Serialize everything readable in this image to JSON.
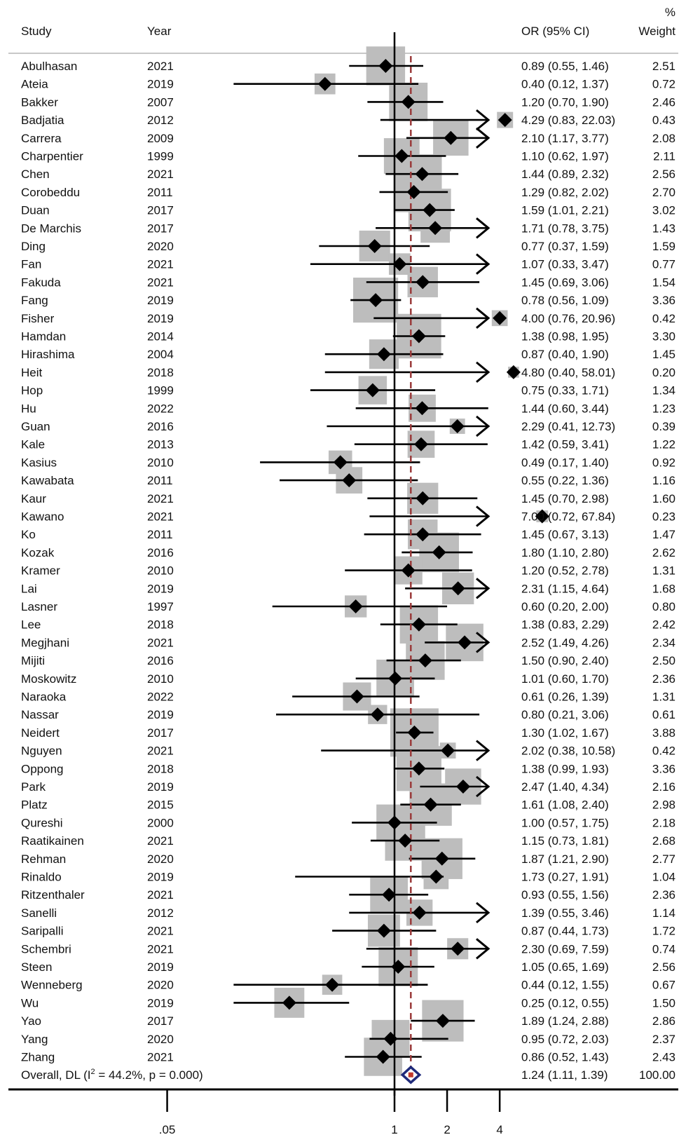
{
  "chart_data": {
    "type": "forest",
    "columns": {
      "study": "Study",
      "year": "Year",
      "effect": "OR (95% CI)",
      "weight_top": "%",
      "weight_bottom": "Weight"
    },
    "x_scale": "log",
    "x_ticks": [
      {
        "value": 0.05,
        "label": ".05"
      },
      {
        "value": 1,
        "label": "1"
      },
      {
        "value": 2,
        "label": "2"
      },
      {
        "value": 4,
        "label": "4"
      }
    ],
    "rows": [
      {
        "study": "Abulhasan",
        "year": "2021",
        "or": 0.89,
        "lo": 0.55,
        "hi": 1.46,
        "ci_text": "0.89 (0.55, 1.46)",
        "weight": 2.51,
        "weight_text": "2.51"
      },
      {
        "study": "Ateia",
        "year": "2019",
        "or": 0.4,
        "lo": 0.12,
        "hi": 1.37,
        "ci_text": "0.40 (0.12, 1.37)",
        "weight": 0.72,
        "weight_text": "0.72"
      },
      {
        "study": "Bakker",
        "year": "2007",
        "or": 1.2,
        "lo": 0.7,
        "hi": 1.9,
        "ci_text": "1.20 (0.70, 1.90)",
        "weight": 2.46,
        "weight_text": "2.46"
      },
      {
        "study": "Badjatia",
        "year": "2012",
        "or": 4.29,
        "lo": 0.83,
        "hi": 22.03,
        "ci_text": "4.29 (0.83, 22.03)",
        "weight": 0.43,
        "weight_text": "0.43"
      },
      {
        "study": "Carrera",
        "year": "2009",
        "or": 2.1,
        "lo": 1.17,
        "hi": 3.77,
        "ci_text": "2.10 (1.17, 3.77)",
        "weight": 2.08,
        "weight_text": "2.08"
      },
      {
        "study": "Charpentier",
        "year": "1999",
        "or": 1.1,
        "lo": 0.62,
        "hi": 1.97,
        "ci_text": "1.10 (0.62, 1.97)",
        "weight": 2.11,
        "weight_text": "2.11"
      },
      {
        "study": "Chen",
        "year": "2021",
        "or": 1.44,
        "lo": 0.89,
        "hi": 2.32,
        "ci_text": "1.44 (0.89, 2.32)",
        "weight": 2.56,
        "weight_text": "2.56"
      },
      {
        "study": "Corobeddu",
        "year": "2011",
        "or": 1.29,
        "lo": 0.82,
        "hi": 2.02,
        "ci_text": "1.29 (0.82, 2.02)",
        "weight": 2.7,
        "weight_text": "2.70"
      },
      {
        "study": "Duan",
        "year": "2017",
        "or": 1.59,
        "lo": 1.01,
        "hi": 2.21,
        "ci_text": "1.59 (1.01, 2.21)",
        "weight": 3.02,
        "weight_text": "3.02"
      },
      {
        "study": "De Marchis",
        "year": "2017",
        "or": 1.71,
        "lo": 0.78,
        "hi": 3.75,
        "ci_text": "1.71 (0.78, 3.75)",
        "weight": 1.43,
        "weight_text": "1.43"
      },
      {
        "study": "Ding",
        "year": "2020",
        "or": 0.77,
        "lo": 0.37,
        "hi": 1.59,
        "ci_text": "0.77 (0.37, 1.59)",
        "weight": 1.59,
        "weight_text": "1.59"
      },
      {
        "study": "Fan",
        "year": "2021",
        "or": 1.07,
        "lo": 0.33,
        "hi": 3.47,
        "ci_text": "1.07 (0.33, 3.47)",
        "weight": 0.77,
        "weight_text": "0.77"
      },
      {
        "study": "Fakuda",
        "year": "2021",
        "or": 1.45,
        "lo": 0.69,
        "hi": 3.06,
        "ci_text": "1.45 (0.69, 3.06)",
        "weight": 1.54,
        "weight_text": "1.54"
      },
      {
        "study": "Fang",
        "year": "2019",
        "or": 0.78,
        "lo": 0.56,
        "hi": 1.09,
        "ci_text": "0.78 (0.56, 1.09)",
        "weight": 3.36,
        "weight_text": "3.36"
      },
      {
        "study": "Fisher",
        "year": "2019",
        "or": 4.0,
        "lo": 0.76,
        "hi": 20.96,
        "ci_text": "4.00 (0.76, 20.96)",
        "weight": 0.42,
        "weight_text": "0.42"
      },
      {
        "study": "Hamdan",
        "year": "2014",
        "or": 1.38,
        "lo": 0.98,
        "hi": 1.95,
        "ci_text": "1.38 (0.98, 1.95)",
        "weight": 3.3,
        "weight_text": "3.30"
      },
      {
        "study": "Hirashima",
        "year": "2004",
        "or": 0.87,
        "lo": 0.4,
        "hi": 1.9,
        "ci_text": "0.87 (0.40, 1.90)",
        "weight": 1.45,
        "weight_text": "1.45"
      },
      {
        "study": "Heit",
        "year": "2018",
        "or": 4.8,
        "lo": 0.4,
        "hi": 58.01,
        "ci_text": "4.80 (0.40, 58.01)",
        "weight": 0.2,
        "weight_text": "0.20"
      },
      {
        "study": "Hop",
        "year": "1999",
        "or": 0.75,
        "lo": 0.33,
        "hi": 1.71,
        "ci_text": "0.75 (0.33, 1.71)",
        "weight": 1.34,
        "weight_text": "1.34"
      },
      {
        "study": "Hu",
        "year": "2022",
        "or": 1.44,
        "lo": 0.6,
        "hi": 3.44,
        "ci_text": "1.44 (0.60, 3.44)",
        "weight": 1.23,
        "weight_text": "1.23"
      },
      {
        "study": "Guan",
        "year": "2016",
        "or": 2.29,
        "lo": 0.41,
        "hi": 12.73,
        "ci_text": "2.29 (0.41, 12.73)",
        "weight": 0.39,
        "weight_text": "0.39"
      },
      {
        "study": "Kale",
        "year": "2013",
        "or": 1.42,
        "lo": 0.59,
        "hi": 3.41,
        "ci_text": "1.42 (0.59, 3.41)",
        "weight": 1.22,
        "weight_text": "1.22"
      },
      {
        "study": "Kasius",
        "year": "2010",
        "or": 0.49,
        "lo": 0.17,
        "hi": 1.4,
        "ci_text": "0.49 (0.17, 1.40)",
        "weight": 0.92,
        "weight_text": "0.92"
      },
      {
        "study": "Kawabata",
        "year": "2011",
        "or": 0.55,
        "lo": 0.22,
        "hi": 1.36,
        "ci_text": "0.55 (0.22, 1.36)",
        "weight": 1.16,
        "weight_text": "1.16"
      },
      {
        "study": "Kaur",
        "year": "2021",
        "or": 1.45,
        "lo": 0.7,
        "hi": 2.98,
        "ci_text": "1.45 (0.70, 2.98)",
        "weight": 1.6,
        "weight_text": "1.60"
      },
      {
        "study": "Kawano",
        "year": "2021",
        "or": 7.0,
        "lo": 0.72,
        "hi": 67.84,
        "ci_text": "7.00 (0.72, 67.84)",
        "weight": 0.23,
        "weight_text": "0.23"
      },
      {
        "study": "Ko",
        "year": "2011",
        "or": 1.45,
        "lo": 0.67,
        "hi": 3.13,
        "ci_text": "1.45 (0.67, 3.13)",
        "weight": 1.47,
        "weight_text": "1.47"
      },
      {
        "study": "Kozak",
        "year": "2016",
        "or": 1.8,
        "lo": 1.1,
        "hi": 2.8,
        "ci_text": "1.80 (1.10, 2.80)",
        "weight": 2.62,
        "weight_text": "2.62"
      },
      {
        "study": "Kramer",
        "year": "2010",
        "or": 1.2,
        "lo": 0.52,
        "hi": 2.78,
        "ci_text": "1.20 (0.52, 2.78)",
        "weight": 1.31,
        "weight_text": "1.31"
      },
      {
        "study": "Lai",
        "year": "2019",
        "or": 2.31,
        "lo": 1.15,
        "hi": 4.64,
        "ci_text": "2.31 (1.15, 4.64)",
        "weight": 1.68,
        "weight_text": "1.68"
      },
      {
        "study": "Lasner",
        "year": "1997",
        "or": 0.6,
        "lo": 0.2,
        "hi": 2.0,
        "ci_text": "0.60 (0.20, 2.00)",
        "weight": 0.8,
        "weight_text": "0.80"
      },
      {
        "study": "Lee",
        "year": "2018",
        "or": 1.38,
        "lo": 0.83,
        "hi": 2.29,
        "ci_text": "1.38 (0.83, 2.29)",
        "weight": 2.42,
        "weight_text": "2.42"
      },
      {
        "study": "Megjhani",
        "year": "2021",
        "or": 2.52,
        "lo": 1.49,
        "hi": 4.26,
        "ci_text": "2.52 (1.49, 4.26)",
        "weight": 2.34,
        "weight_text": "2.34"
      },
      {
        "study": "Mijiti",
        "year": "2016",
        "or": 1.5,
        "lo": 0.9,
        "hi": 2.4,
        "ci_text": "1.50 (0.90, 2.40)",
        "weight": 2.5,
        "weight_text": "2.50"
      },
      {
        "study": "Moskowitz",
        "year": "2010",
        "or": 1.01,
        "lo": 0.6,
        "hi": 1.7,
        "ci_text": "1.01 (0.60, 1.70)",
        "weight": 2.36,
        "weight_text": "2.36"
      },
      {
        "study": "Naraoka",
        "year": "2022",
        "or": 0.61,
        "lo": 0.26,
        "hi": 1.39,
        "ci_text": "0.61 (0.26, 1.39)",
        "weight": 1.31,
        "weight_text": "1.31"
      },
      {
        "study": "Nassar",
        "year": "2019",
        "or": 0.8,
        "lo": 0.21,
        "hi": 3.06,
        "ci_text": "0.80 (0.21, 3.06)",
        "weight": 0.61,
        "weight_text": "0.61"
      },
      {
        "study": "Neidert",
        "year": "2017",
        "or": 1.3,
        "lo": 1.02,
        "hi": 1.67,
        "ci_text": "1.30 (1.02, 1.67)",
        "weight": 3.88,
        "weight_text": "3.88"
      },
      {
        "study": "Nguyen",
        "year": "2021",
        "or": 2.02,
        "lo": 0.38,
        "hi": 10.58,
        "ci_text": "2.02 (0.38, 10.58)",
        "weight": 0.42,
        "weight_text": "0.42"
      },
      {
        "study": "Oppong",
        "year": "2018",
        "or": 1.38,
        "lo": 0.99,
        "hi": 1.93,
        "ci_text": "1.38 (0.99, 1.93)",
        "weight": 3.36,
        "weight_text": "3.36"
      },
      {
        "study": "Park",
        "year": "2019",
        "or": 2.47,
        "lo": 1.4,
        "hi": 4.34,
        "ci_text": "2.47 (1.40, 4.34)",
        "weight": 2.16,
        "weight_text": "2.16"
      },
      {
        "study": "Platz",
        "year": "2015",
        "or": 1.61,
        "lo": 1.08,
        "hi": 2.4,
        "ci_text": "1.61 (1.08, 2.40)",
        "weight": 2.98,
        "weight_text": "2.98"
      },
      {
        "study": "Qureshi",
        "year": "2000",
        "or": 1.0,
        "lo": 0.57,
        "hi": 1.75,
        "ci_text": "1.00 (0.57, 1.75)",
        "weight": 2.18,
        "weight_text": "2.18"
      },
      {
        "study": "Raatikainen",
        "year": "2021",
        "or": 1.15,
        "lo": 0.73,
        "hi": 1.81,
        "ci_text": "1.15 (0.73, 1.81)",
        "weight": 2.68,
        "weight_text": "2.68"
      },
      {
        "study": "Rehman",
        "year": "2020",
        "or": 1.87,
        "lo": 1.21,
        "hi": 2.9,
        "ci_text": "1.87 (1.21, 2.90)",
        "weight": 2.77,
        "weight_text": "2.77"
      },
      {
        "study": "Rinaldo",
        "year": "2019",
        "or": 1.73,
        "lo": 0.27,
        "hi": 1.91,
        "ci_text": "1.73 (0.27, 1.91)",
        "weight": 1.04,
        "weight_text": "1.04"
      },
      {
        "study": "Ritzenthaler",
        "year": "2021",
        "or": 0.93,
        "lo": 0.55,
        "hi": 1.56,
        "ci_text": "0.93 (0.55, 1.56)",
        "weight": 2.36,
        "weight_text": "2.36"
      },
      {
        "study": "Sanelli",
        "year": "2012",
        "or": 1.39,
        "lo": 0.55,
        "hi": 3.46,
        "ci_text": "1.39 (0.55, 3.46)",
        "weight": 1.14,
        "weight_text": "1.14"
      },
      {
        "study": "Saripalli",
        "year": "2021",
        "or": 0.87,
        "lo": 0.44,
        "hi": 1.73,
        "ci_text": "0.87 (0.44, 1.73)",
        "weight": 1.72,
        "weight_text": "1.72"
      },
      {
        "study": "Schembri",
        "year": "2021",
        "or": 2.3,
        "lo": 0.69,
        "hi": 7.59,
        "ci_text": "2.30 (0.69, 7.59)",
        "weight": 0.74,
        "weight_text": "0.74"
      },
      {
        "study": "Steen",
        "year": "2019",
        "or": 1.05,
        "lo": 0.65,
        "hi": 1.69,
        "ci_text": "1.05 (0.65, 1.69)",
        "weight": 2.56,
        "weight_text": "2.56"
      },
      {
        "study": "Wenneberg",
        "year": "2020",
        "or": 0.44,
        "lo": 0.12,
        "hi": 1.55,
        "ci_text": "0.44 (0.12, 1.55)",
        "weight": 0.67,
        "weight_text": "0.67"
      },
      {
        "study": "Wu",
        "year": "2019",
        "or": 0.25,
        "lo": 0.12,
        "hi": 0.55,
        "ci_text": "0.25 (0.12, 0.55)",
        "weight": 1.5,
        "weight_text": "1.50"
      },
      {
        "study": "Yao",
        "year": "2017",
        "or": 1.89,
        "lo": 1.24,
        "hi": 2.88,
        "ci_text": "1.89 (1.24, 2.88)",
        "weight": 2.86,
        "weight_text": "2.86"
      },
      {
        "study": "Yang",
        "year": "2020",
        "or": 0.95,
        "lo": 0.72,
        "hi": 2.03,
        "ci_text": "0.95 (0.72, 2.03)",
        "weight": 2.37,
        "weight_text": "2.37"
      },
      {
        "study": "Zhang",
        "year": "2021",
        "or": 0.86,
        "lo": 0.52,
        "hi": 1.43,
        "ci_text": "0.86 (0.52, 1.43)",
        "weight": 2.43,
        "weight_text": "2.43"
      }
    ],
    "overall": {
      "label_prefix": "Overall, DL (I",
      "label_sup": "2",
      "label_suffix": " = 44.2%, p = 0.000)",
      "or": 1.24,
      "lo": 1.11,
      "hi": 1.39,
      "ci_text": "1.24 (1.11, 1.39)",
      "weight_text": "100.00"
    },
    "colors": {
      "weight_box": "#bdbdbd",
      "marker": "#000000",
      "overall_diamond": "#1f2a7a",
      "overall_line": "#9a3a3a"
    }
  }
}
